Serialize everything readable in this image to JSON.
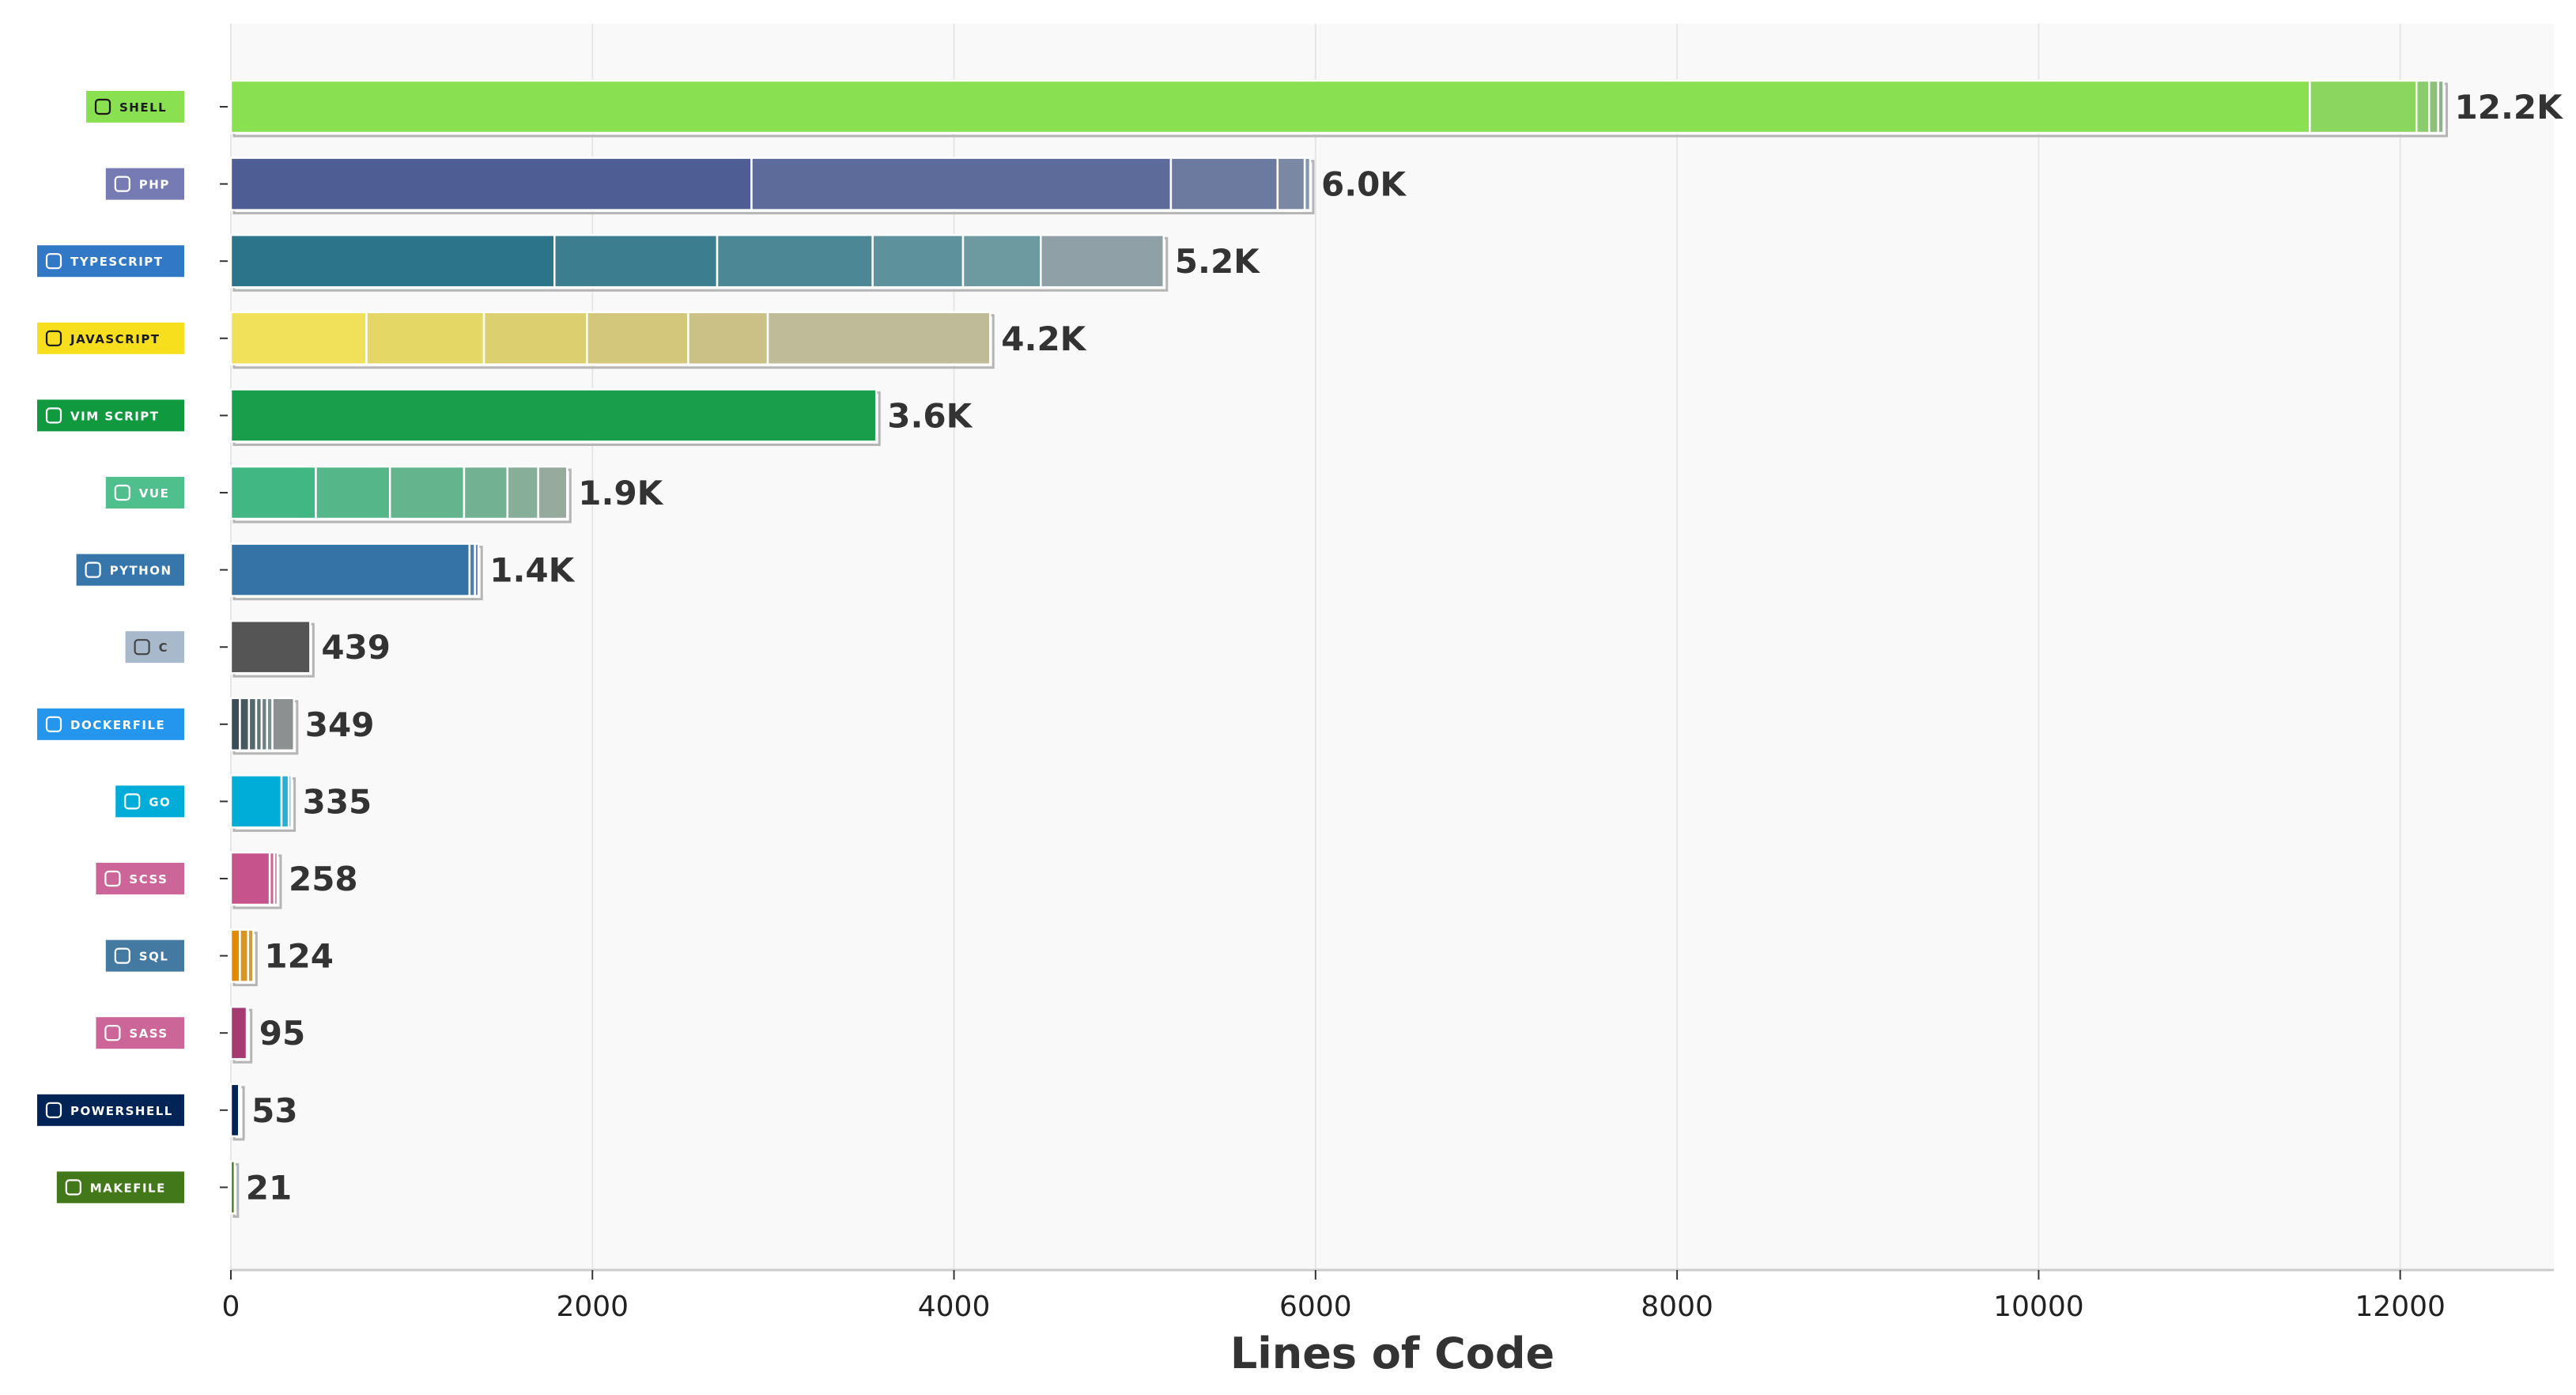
{
  "chart_data": {
    "type": "bar",
    "orientation": "horizontal",
    "stacked": true,
    "xlabel": "Lines of Code",
    "xlim": [
      0,
      12850
    ],
    "xticks": [
      0,
      2000,
      4000,
      6000,
      8000,
      10000,
      12000
    ],
    "grid": "vertical",
    "categories": [
      "SHELL",
      "PHP",
      "TYPESCRIPT",
      "JAVASCRIPT",
      "VIM SCRIPT",
      "VUE",
      "PYTHON",
      "C",
      "DOCKERFILE",
      "GO",
      "SCSS",
      "SQL",
      "SASS",
      "POWERSHELL",
      "MAKEFILE"
    ],
    "bars": [
      {
        "label": "SHELL",
        "total_label": "12.2K",
        "badge_color": "#89E051",
        "badge_text_color": "#1a1a1a",
        "icon": "shell-icon",
        "segments": [
          11500,
          590,
          70,
          50,
          30
        ],
        "segment_colors": [
          "#89E051",
          "#8ad65e",
          "#8ccb6c",
          "#8dc079",
          "#8fb587"
        ]
      },
      {
        "label": "PHP",
        "total_label": "6.0K",
        "badge_color": "#777BB4",
        "badge_text_color": "#ffffff",
        "icon": "php-icon",
        "segments": [
          2880,
          2320,
          590,
          150,
          30
        ],
        "segment_colors": [
          "#4F5D95",
          "#5d6b9a",
          "#6c7a9f",
          "#7a88a4",
          "#8896a9"
        ]
      },
      {
        "label": "TYPESCRIPT",
        "total_label": "5.2K",
        "badge_color": "#3178C6",
        "badge_text_color": "#ffffff",
        "icon": "typescript-icon",
        "segments": [
          1790,
          900,
          860,
          500,
          430,
          680
        ],
        "segment_colors": [
          "#2B7489",
          "#3c7e8f",
          "#4c8795",
          "#5d919b",
          "#6d9aa1",
          "#8fa1a6"
        ]
      },
      {
        "label": "JAVASCRIPT",
        "total_label": "4.2K",
        "badge_color": "#F7DF1E",
        "badge_text_color": "#1a1a1a",
        "icon": "javascript-icon",
        "segments": [
          750,
          650,
          570,
          560,
          440,
          1230
        ],
        "segment_colors": [
          "#F1E05A",
          "#e4d766",
          "#dccf6f",
          "#d3c77b",
          "#cbc086",
          "#bfbb98"
        ]
      },
      {
        "label": "VIM SCRIPT",
        "total_label": "3.6K",
        "badge_color": "#11993f",
        "badge_text_color": "#ffffff",
        "icon": "vim-icon",
        "segments": [
          3570
        ],
        "segment_colors": [
          "#199F4B"
        ]
      },
      {
        "label": "VUE",
        "total_label": "1.9K",
        "badge_color": "#4FC08D",
        "badge_text_color": "#ffffff",
        "icon": "vue-icon",
        "segments": [
          470,
          410,
          410,
          240,
          170,
          160
        ],
        "segment_colors": [
          "#41B883",
          "#55b689",
          "#64b48e",
          "#73b193",
          "#86ae98",
          "#97aa9e"
        ]
      },
      {
        "label": "PYTHON",
        "total_label": "1.4K",
        "badge_color": "#3776AB",
        "badge_text_color": "#ffffff",
        "icon": "python-icon",
        "segments": [
          1320,
          30,
          20
        ],
        "segment_colors": [
          "#3572A5",
          "#4f7fa8",
          "#6a8cab"
        ]
      },
      {
        "label": "C",
        "total_label": "439",
        "badge_color": "#A8B9CC",
        "badge_text_color": "#444444",
        "icon": "c-icon",
        "segments": [
          439
        ],
        "segment_colors": [
          "#555555"
        ]
      },
      {
        "label": "DOCKERFILE",
        "total_label": "349",
        "badge_color": "#2496ED",
        "badge_text_color": "#ffffff",
        "icon": "docker-icon",
        "segments": [
          50,
          50,
          40,
          30,
          30,
          30,
          119
        ],
        "segment_colors": [
          "#384D54",
          "#455a60",
          "#53676c",
          "#607478",
          "#6e8184",
          "#7b8e90",
          "#8c9090"
        ]
      },
      {
        "label": "GO",
        "total_label": "335",
        "badge_color": "#00ADD8",
        "badge_text_color": "#ffffff",
        "icon": "go-icon",
        "segments": [
          280,
          40,
          15
        ],
        "segment_colors": [
          "#00ADD8",
          "#2aaed2",
          "#55afcb"
        ]
      },
      {
        "label": "SCSS",
        "total_label": "258",
        "badge_color": "#CC6699",
        "badge_text_color": "#ffffff",
        "icon": "scss-icon",
        "segments": [
          215,
          25,
          18
        ],
        "segment_colors": [
          "#C6538C",
          "#c66896",
          "#c67ea0"
        ]
      },
      {
        "label": "SQL",
        "total_label": "124",
        "badge_color": "#4479A1",
        "badge_text_color": "#ffffff",
        "icon": "sql-icon",
        "segments": [
          50,
          45,
          29
        ],
        "segment_colors": [
          "#E38C00",
          "#d9951d",
          "#cf9e3a"
        ]
      },
      {
        "label": "SASS",
        "total_label": "95",
        "badge_color": "#CC6699",
        "badge_text_color": "#ffffff",
        "icon": "sass-icon",
        "segments": [
          88,
          7
        ],
        "segment_colors": [
          "#A53B70",
          "#a85a80"
        ]
      },
      {
        "label": "POWERSHELL",
        "total_label": "53",
        "badge_color": "#012456",
        "badge_text_color": "#ffffff",
        "icon": "powershell-icon",
        "segments": [
          45,
          8
        ],
        "segment_colors": [
          "#012456",
          "#2a4670"
        ]
      },
      {
        "label": "MAKEFILE",
        "total_label": "21",
        "badge_color": "#427819",
        "badge_text_color": "#ffffff",
        "icon": "makefile-icon",
        "segments": [
          21
        ],
        "segment_colors": [
          "#427819"
        ]
      }
    ]
  }
}
